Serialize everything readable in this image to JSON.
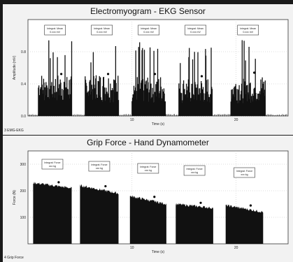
{
  "chart_data": [
    {
      "type": "area",
      "title": "Electromyogram - EKG Sensor",
      "xlabel": "Time (s)",
      "ylabel": "Amplitude (mV)",
      "ylim": [
        0,
        1.2
      ],
      "yticks": [
        "0.8",
        "0.4",
        "0.0"
      ],
      "xticks": [
        "10",
        "20"
      ],
      "corner_label": "3 EMG-EKG",
      "bursts": [
        {
          "start": 1.0,
          "end": 4.2,
          "peak": 0.95,
          "mean": 0.42
        },
        {
          "start": 5.5,
          "end": 8.7,
          "peak": 0.95,
          "mean": 0.42
        },
        {
          "start": 10.0,
          "end": 13.2,
          "peak": 0.95,
          "mean": 0.4
        },
        {
          "start": 14.5,
          "end": 17.7,
          "peak": 0.9,
          "mean": 0.38
        },
        {
          "start": 19.5,
          "end": 22.8,
          "peak": 0.98,
          "mean": 0.4
        }
      ],
      "xlim": [
        0,
        25
      ],
      "annotations": [
        {
          "line1": "Integral: Mean",
          "line2": "0.xxx mV"
        },
        {
          "line1": "Integral: Mean",
          "line2": "0.xxx mV"
        },
        {
          "line1": "Integral: Mean",
          "line2": "0.xxx mV"
        },
        {
          "line1": "Integral: Mean",
          "line2": "0.xxx mV"
        },
        {
          "line1": "Integral: Mean",
          "line2": "0.xxx mV"
        }
      ]
    },
    {
      "type": "area",
      "title": "Grip Force - Hand Dynamometer",
      "xlabel": "Time (s)",
      "ylabel": "Force (N)",
      "ylim": [
        0,
        350
      ],
      "yticks": [
        "300",
        "200",
        "100"
      ],
      "xticks": [
        "10",
        "20"
      ],
      "corner_label": "4 Grip Force",
      "bursts": [
        {
          "start": 0.5,
          "end": 4.2,
          "level_start": 230,
          "level_end": 210
        },
        {
          "start": 5.0,
          "end": 8.7,
          "level_start": 220,
          "level_end": 190
        },
        {
          "start": 9.8,
          "end": 13.3,
          "level_start": 180,
          "level_end": 150
        },
        {
          "start": 14.2,
          "end": 17.8,
          "level_start": 150,
          "level_end": 135
        },
        {
          "start": 19.0,
          "end": 22.6,
          "level_start": 145,
          "level_end": 120
        }
      ],
      "xlim": [
        0,
        25
      ],
      "annotations": [
        {
          "line1": "Integral: Force",
          "line2": "xxx kg"
        },
        {
          "line1": "Integral: Force",
          "line2": "xxx kg"
        },
        {
          "line1": "Integral: Force",
          "line2": "xxx kg"
        },
        {
          "line1": "Integral: Force",
          "line2": "xxx kg"
        },
        {
          "line1": "Integral: Force",
          "line2": "xxx kg"
        }
      ]
    }
  ],
  "colors": {
    "fill": "#111111",
    "grid": "#bbbbbb",
    "axis": "#333333"
  }
}
